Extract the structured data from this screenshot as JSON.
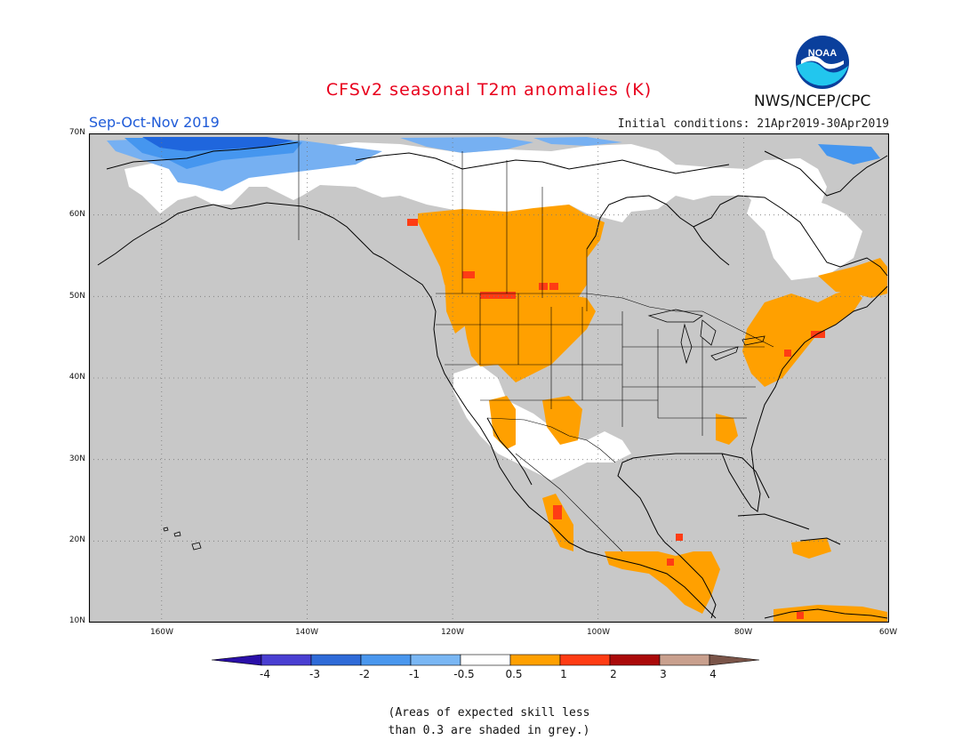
{
  "header": {
    "title": "CFSv2 seasonal T2m anomalies (K)",
    "season": "Sep-Oct-Nov 2019",
    "initial_conditions": "Initial conditions: 21Apr2019-30Apr2019",
    "agency": "NWS/NCEP/CPC",
    "logo_text": "NOAA"
  },
  "map": {
    "region": "North America",
    "lat_range": [
      10,
      70
    ],
    "lon_range": [
      -170,
      -60
    ],
    "lat_labels": [
      "70N",
      "60N",
      "50N",
      "40N",
      "30N",
      "20N",
      "10N"
    ],
    "lon_labels": [
      "160W",
      "140W",
      "120W",
      "100W",
      "80W",
      "60W"
    ],
    "grid": "dotted",
    "colors": {
      "skill_mask_grey": "#c8c8c8",
      "neutral": "#ffffff",
      "warm_0_5_to_1": "#ffa000",
      "warm_1_to_2": "#ff3c14",
      "cool_m1_to_m0_5": "#76b0f2",
      "cool_m2_to_m1": "#4596ef",
      "cool_m3_to_m2": "#1f66dd"
    }
  },
  "colorbar": {
    "levels": [
      "-4",
      "-3",
      "-2",
      "-1",
      "-0.5",
      "0.5",
      "1",
      "2",
      "3",
      "4"
    ],
    "colors": [
      "#2a0fa8",
      "#4a3fd2",
      "#2f6bd8",
      "#4a97ee",
      "#7ab7f4",
      "#ffffff",
      "#ffa000",
      "#ff3c14",
      "#aa0a0a",
      "#c9a08e",
      "#7a5448"
    ]
  },
  "note": {
    "line1": "(Areas of expected skill less",
    "line2": "than 0.3 are shaded in grey.)"
  }
}
